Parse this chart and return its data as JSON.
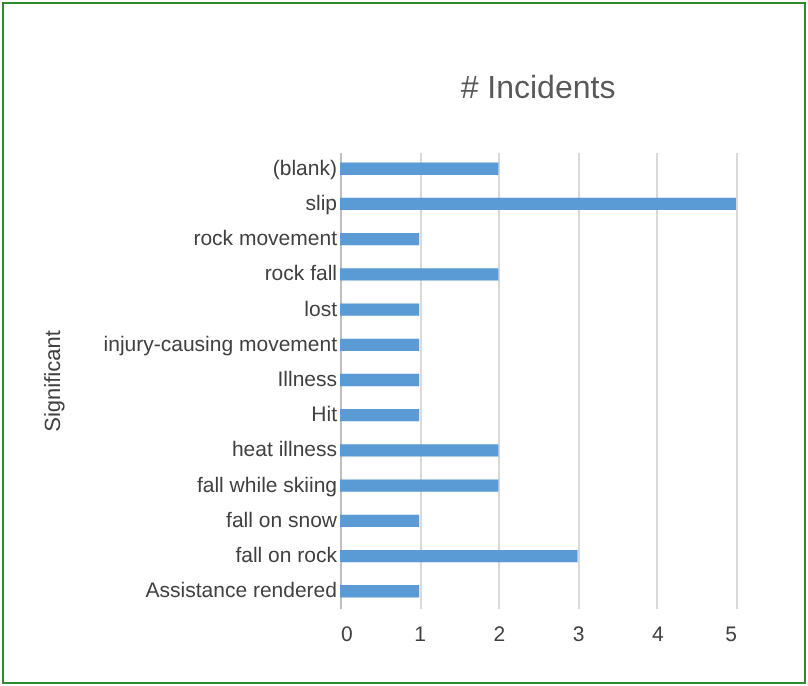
{
  "chart_data": {
    "type": "bar",
    "orientation": "horizontal",
    "title": "# Incidents",
    "ylabel": "Significant",
    "categories": [
      "(blank)",
      "slip",
      "rock movement",
      "rock fall",
      "lost",
      "injury-causing movement",
      "Illness",
      "Hit",
      "heat illness",
      "fall while skiing",
      "fall on snow",
      "fall on rock",
      "Assistance rendered"
    ],
    "values": [
      2,
      5,
      1,
      2,
      1,
      1,
      1,
      1,
      2,
      2,
      1,
      3,
      1
    ],
    "color": "#5b9bd5",
    "xlim": [
      0,
      5
    ],
    "xticks": [
      0,
      1,
      2,
      3,
      4,
      5
    ],
    "grid": "x"
  }
}
